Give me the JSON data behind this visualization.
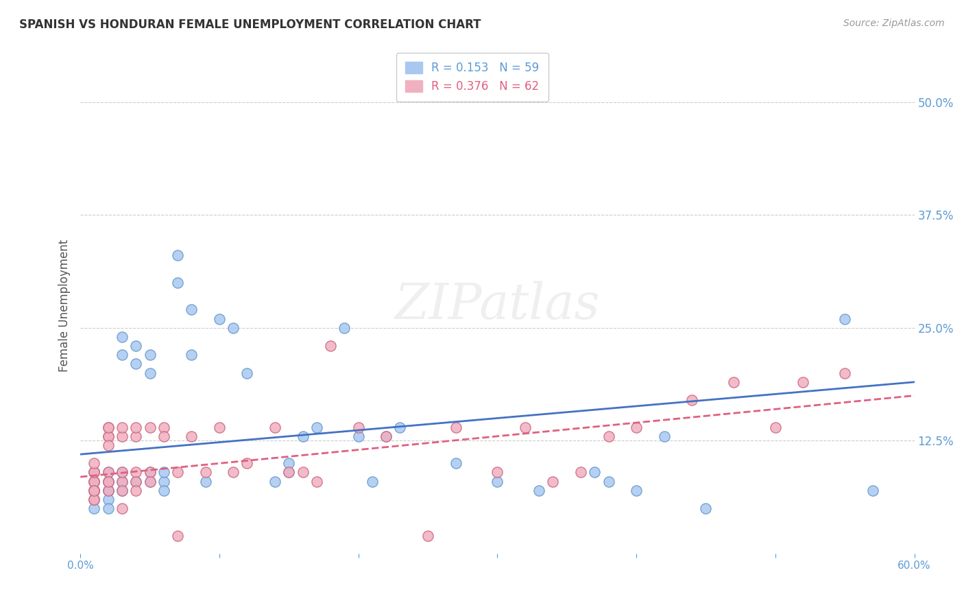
{
  "title": "SPANISH VS HONDURAN FEMALE UNEMPLOYMENT CORRELATION CHART",
  "source": "Source: ZipAtlas.com",
  "xlabel_bottom": "",
  "ylabel": "Female Unemployment",
  "watermark": "ZIPatlas",
  "xlim": [
    0.0,
    0.6
  ],
  "ylim": [
    0.0,
    0.55
  ],
  "xticks": [
    0.0,
    0.1,
    0.2,
    0.3,
    0.4,
    0.5,
    0.6
  ],
  "xtick_labels": [
    "0.0%",
    "",
    "",
    "",
    "",
    "",
    "60.0%"
  ],
  "ytick_labels_right": [
    "12.5%",
    "25.0%",
    "37.5%",
    "50.0%"
  ],
  "yticks_right": [
    0.125,
    0.25,
    0.375,
    0.5
  ],
  "legend_entries": [
    {
      "label": "R = 0.153   N = 59",
      "color": "#a8c8f0"
    },
    {
      "label": "R = 0.376   N = 62",
      "color": "#f0a8b8"
    }
  ],
  "series_spanish": {
    "color": "#a8c8f0",
    "edge_color": "#6699cc",
    "x": [
      0.01,
      0.01,
      0.01,
      0.01,
      0.01,
      0.01,
      0.01,
      0.01,
      0.01,
      0.02,
      0.02,
      0.02,
      0.02,
      0.02,
      0.02,
      0.02,
      0.03,
      0.03,
      0.03,
      0.03,
      0.03,
      0.04,
      0.04,
      0.04,
      0.05,
      0.05,
      0.05,
      0.05,
      0.06,
      0.06,
      0.06,
      0.07,
      0.07,
      0.08,
      0.08,
      0.09,
      0.1,
      0.11,
      0.12,
      0.14,
      0.15,
      0.15,
      0.16,
      0.17,
      0.19,
      0.2,
      0.21,
      0.22,
      0.23,
      0.27,
      0.3,
      0.33,
      0.37,
      0.38,
      0.4,
      0.42,
      0.45,
      0.55,
      0.57
    ],
    "y": [
      0.07,
      0.08,
      0.09,
      0.08,
      0.07,
      0.06,
      0.05,
      0.07,
      0.09,
      0.08,
      0.07,
      0.08,
      0.09,
      0.07,
      0.06,
      0.05,
      0.22,
      0.24,
      0.08,
      0.09,
      0.07,
      0.21,
      0.23,
      0.08,
      0.2,
      0.22,
      0.09,
      0.08,
      0.08,
      0.09,
      0.07,
      0.3,
      0.33,
      0.27,
      0.22,
      0.08,
      0.26,
      0.25,
      0.2,
      0.08,
      0.09,
      0.1,
      0.13,
      0.14,
      0.25,
      0.13,
      0.08,
      0.13,
      0.14,
      0.1,
      0.08,
      0.07,
      0.09,
      0.08,
      0.07,
      0.13,
      0.05,
      0.26,
      0.07
    ]
  },
  "series_hondurans": {
    "color": "#f0b0c0",
    "edge_color": "#cc6680",
    "x": [
      0.01,
      0.01,
      0.01,
      0.01,
      0.01,
      0.01,
      0.01,
      0.01,
      0.01,
      0.01,
      0.02,
      0.02,
      0.02,
      0.02,
      0.02,
      0.02,
      0.02,
      0.02,
      0.02,
      0.03,
      0.03,
      0.03,
      0.03,
      0.03,
      0.03,
      0.04,
      0.04,
      0.04,
      0.04,
      0.04,
      0.05,
      0.05,
      0.05,
      0.06,
      0.06,
      0.07,
      0.07,
      0.08,
      0.09,
      0.1,
      0.11,
      0.12,
      0.14,
      0.15,
      0.16,
      0.17,
      0.18,
      0.2,
      0.22,
      0.25,
      0.27,
      0.3,
      0.32,
      0.34,
      0.36,
      0.38,
      0.4,
      0.44,
      0.47,
      0.5,
      0.52,
      0.55
    ],
    "y": [
      0.08,
      0.09,
      0.07,
      0.06,
      0.08,
      0.07,
      0.09,
      0.06,
      0.07,
      0.1,
      0.13,
      0.14,
      0.08,
      0.09,
      0.13,
      0.14,
      0.12,
      0.07,
      0.08,
      0.13,
      0.14,
      0.08,
      0.09,
      0.07,
      0.05,
      0.13,
      0.14,
      0.09,
      0.08,
      0.07,
      0.14,
      0.09,
      0.08,
      0.14,
      0.13,
      0.09,
      0.02,
      0.13,
      0.09,
      0.14,
      0.09,
      0.1,
      0.14,
      0.09,
      0.09,
      0.08,
      0.23,
      0.14,
      0.13,
      0.02,
      0.14,
      0.09,
      0.14,
      0.08,
      0.09,
      0.13,
      0.14,
      0.17,
      0.19,
      0.14,
      0.19,
      0.2
    ]
  },
  "regression_spanish": {
    "color": "#4472c4",
    "x_start": 0.0,
    "x_end": 0.6,
    "y_start": 0.11,
    "y_end": 0.19,
    "linestyle": "solid",
    "linewidth": 2.0
  },
  "regression_hondurans": {
    "color": "#e06080",
    "x_start": 0.0,
    "x_end": 0.6,
    "y_start": 0.085,
    "y_end": 0.175,
    "linestyle": "dashed",
    "linewidth": 2.0
  },
  "title_color": "#333333",
  "axis_color": "#5b9bd5",
  "tick_color": "#5b9bd5",
  "grid_color": "#cccccc",
  "background_color": "#ffffff",
  "legend_box_color_spanish": "#a8c8f0",
  "legend_box_color_hondurans": "#f0b0c0",
  "legend_text_color_spanish": "#5b9bd5",
  "legend_text_color_hondurans": "#e06080"
}
